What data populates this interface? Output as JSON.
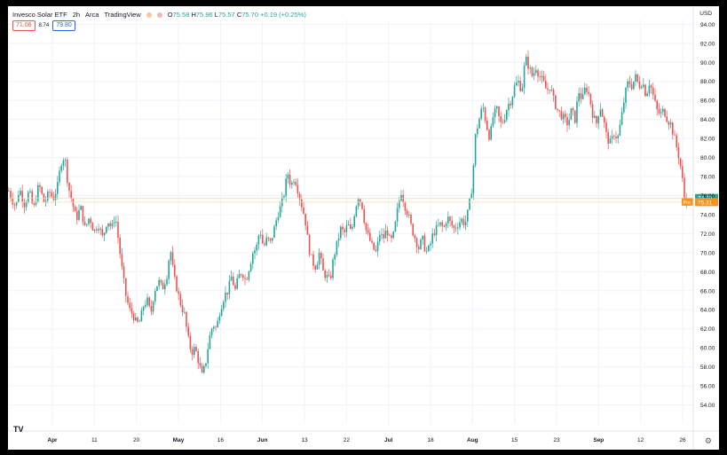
{
  "header": {
    "symbol": "Invesco Solar ETF",
    "interval": "2h",
    "exchange": "Arca",
    "source": "TradingView",
    "ohlc": {
      "o_label": "O",
      "o": "75.58",
      "h_label": "H",
      "h": "75.96",
      "l_label": "L",
      "l": "75.57",
      "c_label": "C",
      "c": "75.70",
      "change": "+0.19 (+0.25%)"
    },
    "sell_price": "71.06",
    "spread": "8.74",
    "buy_price": "79.80",
    "currency": "USD"
  },
  "icons": {
    "logo": "tradingview-logo-icon",
    "settings": "gear-icon",
    "status": "market-status-icon"
  },
  "colors": {
    "up": "#26a69a",
    "down": "#ef5350",
    "last_price": "#26a69a",
    "pre_market": "#f7931a",
    "grid": "#f0f3fa",
    "axis_text": "#131722"
  },
  "chart_data": {
    "type": "candlestick",
    "y_axis": {
      "side": "right",
      "ylim": [
        52,
        94.5
      ],
      "ticks": [
        54,
        56,
        58,
        60,
        62,
        64,
        66,
        68,
        70,
        72,
        74,
        76,
        78,
        80,
        82,
        84,
        86,
        88,
        90,
        92,
        94
      ]
    },
    "x_axis": {
      "tick_labels": [
        "Apr",
        "11",
        "20",
        "May",
        "16",
        "Jun",
        "13",
        "22",
        "Jul",
        "18",
        "Aug",
        "15",
        "23",
        "Sep",
        "12",
        "26"
      ]
    },
    "last_price": {
      "value": "75.70",
      "label": "75.70"
    },
    "pre_market": {
      "label": "Pre",
      "value": "75.31"
    },
    "path": [
      [
        0,
        76.5
      ],
      [
        4,
        75.5
      ],
      [
        8,
        74.8
      ],
      [
        12,
        76.8
      ],
      [
        18,
        75
      ],
      [
        23,
        76.5
      ],
      [
        28,
        74.5
      ],
      [
        34,
        77.2
      ],
      [
        40,
        75.2
      ],
      [
        46,
        76.4
      ],
      [
        50,
        75.6
      ],
      [
        55,
        77
      ],
      [
        59,
        79.5
      ],
      [
        63,
        80.2
      ],
      [
        67,
        77
      ],
      [
        71,
        75.5
      ],
      [
        76,
        73.5
      ],
      [
        81,
        74.8
      ],
      [
        86,
        72.5
      ],
      [
        91,
        73.8
      ],
      [
        96,
        72.2
      ],
      [
        101,
        73
      ],
      [
        106,
        71.5
      ],
      [
        111,
        73.5
      ],
      [
        116,
        72.5
      ],
      [
        120,
        74
      ],
      [
        124,
        71
      ],
      [
        128,
        68
      ],
      [
        132,
        65.5
      ],
      [
        136,
        64
      ],
      [
        140,
        63.5
      ],
      [
        144,
        62.5
      ],
      [
        148,
        62.8
      ],
      [
        152,
        64.5
      ],
      [
        156,
        65
      ],
      [
        160,
        63.5
      ],
      [
        164,
        66
      ],
      [
        169,
        67
      ],
      [
        173,
        66.2
      ],
      [
        178,
        67.5
      ],
      [
        182,
        70.5
      ],
      [
        186,
        67.5
      ],
      [
        190,
        66
      ],
      [
        194,
        64.5
      ],
      [
        198,
        63.5
      ],
      [
        202,
        61
      ],
      [
        206,
        59.5
      ],
      [
        210,
        60
      ],
      [
        214,
        58.5
      ],
      [
        218,
        57
      ],
      [
        222,
        58.5
      ],
      [
        226,
        61
      ],
      [
        230,
        62.5
      ],
      [
        234,
        62
      ],
      [
        238,
        64
      ],
      [
        243,
        65.5
      ],
      [
        247,
        66
      ],
      [
        251,
        67.5
      ],
      [
        255,
        66
      ],
      [
        259,
        67.5
      ],
      [
        263,
        68
      ],
      [
        267,
        67
      ],
      [
        271,
        68.5
      ],
      [
        275,
        70
      ],
      [
        279,
        70.5
      ],
      [
        283,
        72.5
      ],
      [
        287,
        70.5
      ],
      [
        291,
        71.5
      ],
      [
        295,
        71
      ],
      [
        299,
        72.5
      ],
      [
        303,
        74
      ],
      [
        307,
        75
      ],
      [
        311,
        76.5
      ],
      [
        314,
        78.5
      ],
      [
        318,
        77
      ],
      [
        322,
        78
      ],
      [
        326,
        76.5
      ],
      [
        330,
        75
      ],
      [
        334,
        73.5
      ],
      [
        338,
        70.5
      ],
      [
        342,
        69
      ],
      [
        346,
        68.5
      ],
      [
        350,
        70
      ],
      [
        354,
        68
      ],
      [
        358,
        67.5
      ],
      [
        362,
        67
      ],
      [
        366,
        69.5
      ],
      [
        370,
        71
      ],
      [
        374,
        72.5
      ],
      [
        378,
        72
      ],
      [
        382,
        73
      ],
      [
        386,
        72
      ],
      [
        390,
        74.5
      ],
      [
        394,
        76
      ],
      [
        398,
        75
      ],
      [
        402,
        72.5
      ],
      [
        406,
        71.5
      ],
      [
        410,
        70.5
      ],
      [
        414,
        70
      ],
      [
        418,
        72
      ],
      [
        422,
        71.5
      ],
      [
        426,
        72.5
      ],
      [
        430,
        71
      ],
      [
        434,
        72
      ],
      [
        438,
        74.5
      ],
      [
        442,
        76.5
      ],
      [
        446,
        75
      ],
      [
        450,
        74
      ],
      [
        454,
        72.5
      ],
      [
        458,
        71.5
      ],
      [
        462,
        70.5
      ],
      [
        466,
        71.5
      ],
      [
        470,
        70
      ],
      [
        474,
        70.5
      ],
      [
        478,
        72
      ],
      [
        482,
        72.5
      ],
      [
        486,
        73
      ],
      [
        490,
        72.5
      ],
      [
        494,
        73.8
      ],
      [
        498,
        73
      ],
      [
        502,
        72.5
      ],
      [
        506,
        73
      ],
      [
        510,
        73.5
      ],
      [
        514,
        73
      ],
      [
        518,
        74.5
      ],
      [
        522,
        77
      ],
      [
        526,
        82.5
      ],
      [
        530,
        84
      ],
      [
        534,
        85.5
      ],
      [
        538,
        83.5
      ],
      [
        542,
        82
      ],
      [
        546,
        84.5
      ],
      [
        550,
        85
      ],
      [
        554,
        83.5
      ],
      [
        558,
        84
      ],
      [
        562,
        85.5
      ],
      [
        566,
        86
      ],
      [
        570,
        87.5
      ],
      [
        574,
        88
      ],
      [
        578,
        87
      ],
      [
        582,
        90.5
      ],
      [
        586,
        89.5
      ],
      [
        590,
        88.5
      ],
      [
        594,
        89.5
      ],
      [
        598,
        88.5
      ],
      [
        602,
        88
      ],
      [
        606,
        87
      ],
      [
        610,
        87.5
      ],
      [
        614,
        86
      ],
      [
        618,
        85
      ],
      [
        622,
        84.5
      ],
      [
        626,
        84
      ],
      [
        630,
        83.5
      ],
      [
        634,
        85
      ],
      [
        638,
        84
      ],
      [
        642,
        87
      ],
      [
        646,
        86
      ],
      [
        650,
        87.5
      ],
      [
        654,
        86.5
      ],
      [
        658,
        84.5
      ],
      [
        662,
        83.5
      ],
      [
        666,
        85.5
      ],
      [
        670,
        84
      ],
      [
        674,
        82
      ],
      [
        678,
        81.5
      ],
      [
        682,
        82.5
      ],
      [
        686,
        82
      ],
      [
        690,
        84
      ],
      [
        694,
        86.5
      ],
      [
        698,
        88
      ],
      [
        702,
        87.5
      ],
      [
        706,
        88.5
      ],
      [
        710,
        87.5
      ],
      [
        714,
        88
      ],
      [
        718,
        86.5
      ],
      [
        722,
        88
      ],
      [
        726,
        86.5
      ],
      [
        730,
        85
      ],
      [
        734,
        84.5
      ],
      [
        738,
        85
      ],
      [
        742,
        84
      ],
      [
        746,
        83.5
      ],
      [
        750,
        82
      ],
      [
        754,
        80.5
      ],
      [
        758,
        78.5
      ],
      [
        761,
        75.8
      ],
      [
        764,
        75.3
      ]
    ]
  }
}
